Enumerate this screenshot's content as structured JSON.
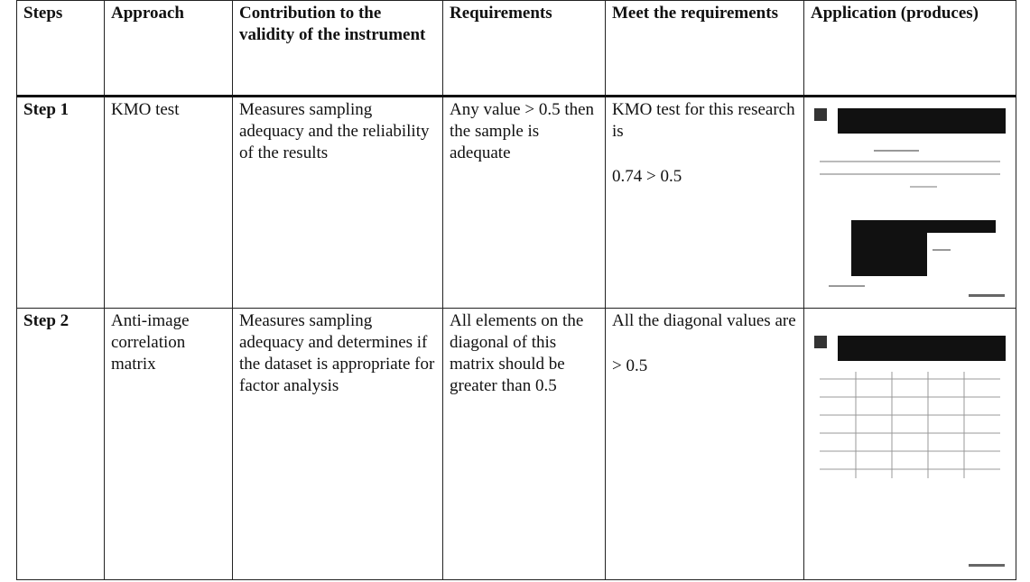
{
  "table": {
    "header": [
      "Steps",
      "Approach",
      "Contribution to the validity of the instrument",
      "Requirements",
      "Meet the requirements",
      "Application (produces)"
    ],
    "rows": [
      {
        "step": "Step 1",
        "approach": "KMO test",
        "contribution": "Measures sampling adequacy and the reliability of the results",
        "requirements": "Any value > 0.5 then the sample is adequate",
        "meet": [
          "KMO test for this research is",
          "0.74 > 0.5"
        ]
      },
      {
        "step": "Step 2",
        "approach": "Anti-image correlation matrix",
        "contribution": "Measures sampling adequacy and determines if the dataset is appropriate for factor analysis",
        "requirements": "All elements on the diagonal of this matrix should be greater than 0.5",
        "meet": [
          "All the diagonal values are",
          "> 0.5"
        ]
      }
    ]
  }
}
